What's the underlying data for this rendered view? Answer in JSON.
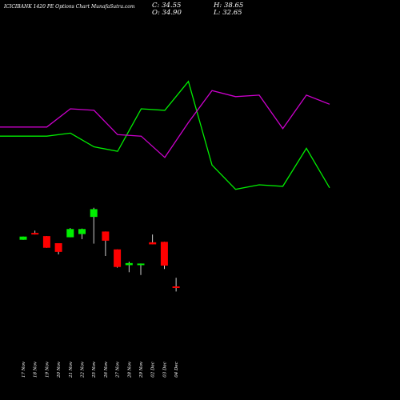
{
  "header": {
    "title": "ICICIBANK 1420  PE Options  Chart MunafaSutra.com",
    "close_label": "C: 34.55",
    "open_label": "O: 34.90",
    "high_label": "H: 38.65",
    "low_label": "L: 32.65"
  },
  "chart_data": {
    "type": "candlestick",
    "title": "ICICIBANK 1420  PE Options  Chart MunafaSutra.com",
    "x": [
      "17 Nov",
      "18 Nov",
      "19 Nov",
      "20 Nov",
      "21 Nov",
      "22 Nov",
      "25 Nov",
      "26 Nov",
      "27 Nov",
      "28 Nov",
      "29 Nov",
      "02 Dec",
      "03 Dec",
      "04 Dec"
    ],
    "candles": [
      {
        "date": "17 Nov",
        "open": 55.3,
        "high": 56.7,
        "low": 55.3,
        "close": 56.7,
        "direction": "up"
      },
      {
        "date": "18 Nov",
        "open": 58.3,
        "high": 59.3,
        "low": 57.6,
        "close": 57.8,
        "direction": "down"
      },
      {
        "date": "19 Nov",
        "open": 56.9,
        "high": 56.9,
        "low": 51.8,
        "close": 51.8,
        "direction": "down"
      },
      {
        "date": "20 Nov",
        "open": 53.8,
        "high": 53.8,
        "low": 48.9,
        "close": 50.0,
        "direction": "down"
      },
      {
        "date": "21 Nov",
        "open": 56.4,
        "high": 60.4,
        "low": 56.4,
        "close": 60.0,
        "direction": "up"
      },
      {
        "date": "22 Nov",
        "open": 57.8,
        "high": 60.2,
        "low": 55.6,
        "close": 60.0,
        "direction": "up"
      },
      {
        "date": "25 Nov",
        "open": 65.3,
        "high": 69.3,
        "low": 53.6,
        "close": 68.7,
        "direction": "up"
      },
      {
        "date": "26 Nov",
        "open": 58.9,
        "high": 58.9,
        "low": 48.2,
        "close": 54.9,
        "direction": "down"
      },
      {
        "date": "27 Nov",
        "open": 51.1,
        "high": 51.1,
        "low": 43.1,
        "close": 43.4,
        "direction": "down"
      },
      {
        "date": "28 Nov",
        "open": 44.2,
        "high": 45.7,
        "low": 41.1,
        "close": 45.1,
        "direction": "up"
      },
      {
        "date": "29 Nov",
        "open": 44.3,
        "high": 44.9,
        "low": 39.9,
        "close": 44.9,
        "direction": "up"
      },
      {
        "date": "02 Dec",
        "open": 54.2,
        "high": 57.6,
        "low": 53.3,
        "close": 53.3,
        "direction": "down"
      },
      {
        "date": "03 Dec",
        "open": 54.4,
        "high": 54.4,
        "low": 42.5,
        "close": 44.0,
        "direction": "down"
      },
      {
        "date": "04 Dec",
        "open": 34.9,
        "high": 38.65,
        "low": 32.65,
        "close": 34.55,
        "direction": "down"
      }
    ],
    "series": [
      {
        "color": "#00ee00",
        "values": [
          42,
          42,
          44,
          35,
          32,
          60,
          59,
          78,
          23,
          7,
          10,
          9,
          34,
          8
        ]
      },
      {
        "color": "#cc00cc",
        "values": [
          48,
          48,
          60,
          59,
          43,
          42,
          28,
          51,
          72,
          68,
          69,
          47,
          69,
          63
        ]
      }
    ],
    "colors": {
      "up": "#00ee00",
      "down": "#ff0000",
      "background": "#000000",
      "text": "#ffffff"
    },
    "grid": false,
    "legend": "none"
  }
}
